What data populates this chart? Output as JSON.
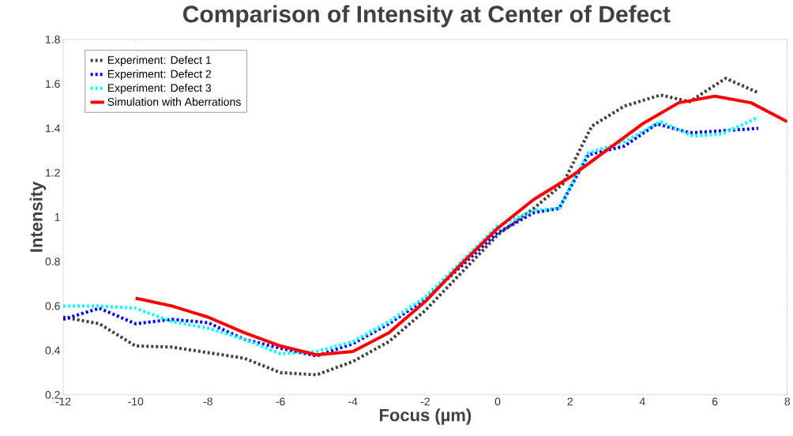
{
  "chart_data": {
    "type": "line",
    "title": "Comparison of Intensity at Center of Defect",
    "xlabel": "Focus (µm)",
    "ylabel": "Intensity",
    "xlim": [
      -12,
      8
    ],
    "xticks": [
      -12,
      -10,
      -8,
      -6,
      -4,
      -2,
      0,
      2,
      4,
      6,
      8
    ],
    "ylim": [
      0.2,
      1.8
    ],
    "yticks": [
      0.2,
      0.4,
      0.6,
      0.8,
      1,
      1.2,
      1.4,
      1.6,
      1.8
    ],
    "grid": false,
    "legend": "top left",
    "marker": "none",
    "series": [
      {
        "name": "Experiment: Defect 1",
        "color": "#404040",
        "line_style": "dotted",
        "x": [
          -12,
          -11,
          -10,
          -9,
          -8,
          -7,
          -6,
          -5,
          -4,
          -3,
          -2,
          -1,
          0,
          1,
          1.8,
          2.6,
          3.5,
          4.5,
          5.3,
          6.3,
          7.2
        ],
        "values": [
          0.55,
          0.52,
          0.42,
          0.415,
          0.39,
          0.365,
          0.3,
          0.29,
          0.35,
          0.44,
          0.58,
          0.75,
          0.92,
          1.04,
          1.15,
          1.41,
          1.5,
          1.55,
          1.52,
          1.625,
          1.56
        ]
      },
      {
        "name": "Experiment: Defect 2",
        "color": "#0000ff",
        "line_style": "dotted",
        "x": [
          -12,
          -11,
          -10,
          -9,
          -8,
          -7,
          -6,
          -5,
          -4,
          -3,
          -2,
          -1,
          0,
          1,
          1.7,
          2.5,
          3.5,
          4.4,
          5.3,
          6.3,
          7.2
        ],
        "values": [
          0.54,
          0.59,
          0.52,
          0.54,
          0.525,
          0.45,
          0.41,
          0.375,
          0.43,
          0.52,
          0.63,
          0.78,
          0.93,
          1.02,
          1.04,
          1.28,
          1.32,
          1.42,
          1.38,
          1.39,
          1.4
        ]
      },
      {
        "name": "Experiment: Defect 3",
        "color": "#00ffff",
        "line_style": "dotted",
        "x": [
          -12,
          -11,
          -10,
          -9,
          -8,
          -7,
          -6,
          -5,
          -4,
          -3,
          -2,
          -1,
          0,
          1,
          1.7,
          2.5,
          3.5,
          4.5,
          5.4,
          6.2,
          7.2
        ],
        "values": [
          0.6,
          0.6,
          0.59,
          0.53,
          0.5,
          0.45,
          0.385,
          0.395,
          0.44,
          0.53,
          0.64,
          0.8,
          0.96,
          1.03,
          1.04,
          1.29,
          1.34,
          1.43,
          1.365,
          1.375,
          1.45
        ]
      },
      {
        "name": "Simulation with Aberrations",
        "color": "#ff0000",
        "line_style": "solid",
        "x": [
          -10,
          -9,
          -8,
          -7,
          -6,
          -5,
          -4,
          -3,
          -2,
          -1,
          0,
          1,
          2,
          3,
          4,
          5,
          6,
          7,
          8
        ],
        "values": [
          0.635,
          0.6,
          0.55,
          0.48,
          0.42,
          0.38,
          0.395,
          0.48,
          0.62,
          0.79,
          0.95,
          1.08,
          1.18,
          1.3,
          1.42,
          1.515,
          1.545,
          1.515,
          1.43
        ]
      }
    ]
  }
}
